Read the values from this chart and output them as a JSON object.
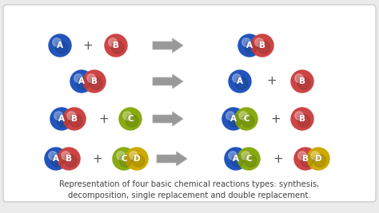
{
  "bg_color": "#ebebeb",
  "border_color": "#cccccc",
  "colors": {
    "A": "#2255bb",
    "B": "#cc4444",
    "C": "#88aa11",
    "D": "#ccaa00"
  },
  "caption_line1": "Representation of four basic chemical reactions types: synthesis,",
  "caption_line2": "decomposition, single replacement and double replacement.",
  "caption_fontsize": 7.2
}
